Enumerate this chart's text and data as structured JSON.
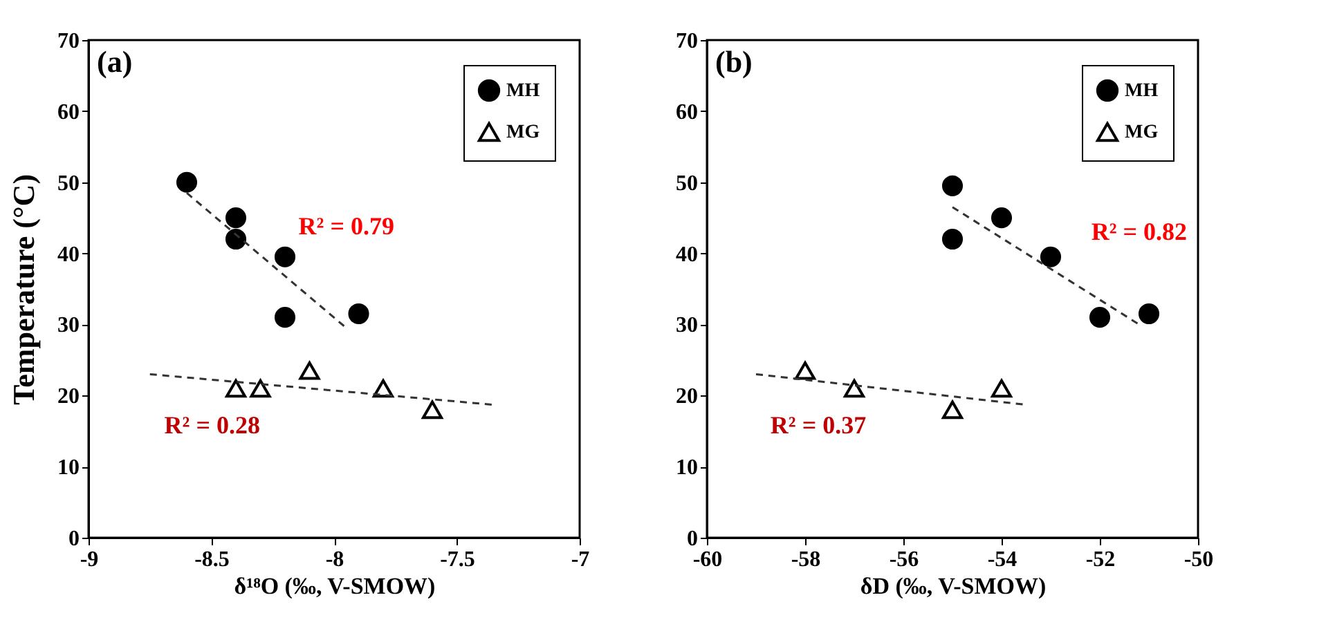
{
  "chart_data": [
    {
      "type": "scatter",
      "title": "(a)",
      "xlabel": "δ¹⁸O (‰, V-SMOW)",
      "ylabel": "Temperature (°C)",
      "xlim": [
        -9,
        -7
      ],
      "xticks": [
        -9,
        -8.5,
        -8,
        -7.5,
        -7
      ],
      "ylim": [
        0,
        70
      ],
      "yticks": [
        0,
        10,
        20,
        30,
        40,
        50,
        60,
        70
      ],
      "grid": false,
      "legend": "top right",
      "series": [
        {
          "name": "MH",
          "color": "#000000",
          "marker": "circle",
          "x": [
            -8.6,
            -8.4,
            -8.4,
            -8.2,
            -8.2,
            -7.9
          ],
          "values": [
            50,
            45,
            42,
            39.5,
            31,
            31.5
          ]
        },
        {
          "name": "MG",
          "color": "#000000",
          "marker": "triangle",
          "x": [
            -8.4,
            -8.3,
            -8.1,
            -7.8,
            -7.6
          ],
          "values": [
            21,
            21,
            23.5,
            21,
            18
          ]
        },
        {
          "type": "line",
          "color": "#333333",
          "line_style": "dashed",
          "x": [
            -8.6,
            -7.95
          ],
          "values": [
            48.5,
            29.5
          ]
        },
        {
          "type": "line",
          "color": "#333333",
          "line_style": "dashed",
          "x": [
            -8.75,
            -7.35
          ],
          "values": [
            23,
            18.7
          ]
        }
      ],
      "annotations": [
        "R² = 0.79",
        "R² = 0.28"
      ]
    },
    {
      "type": "scatter",
      "title": "(b)",
      "xlabel": "δD (‰, V-SMOW)",
      "xlim": [
        -60,
        -50
      ],
      "xticks": [
        -60,
        -58,
        -56,
        -54,
        -52,
        -50
      ],
      "ylim": [
        0,
        70
      ],
      "yticks": [
        0,
        10,
        20,
        30,
        40,
        50,
        60,
        70
      ],
      "grid": false,
      "legend": "top right",
      "series": [
        {
          "name": "MH",
          "color": "#000000",
          "marker": "circle",
          "x": [
            -55,
            -55,
            -54,
            -53,
            -52,
            -51
          ],
          "values": [
            49.5,
            42,
            45,
            39.5,
            31,
            31.5
          ]
        },
        {
          "name": "MG",
          "color": "#000000",
          "marker": "triangle",
          "x": [
            -58,
            -57,
            -55,
            -54
          ],
          "values": [
            23.5,
            21,
            18,
            21
          ]
        },
        {
          "type": "line",
          "color": "#333333",
          "line_style": "dashed",
          "x": [
            -55,
            -51.2
          ],
          "values": [
            46.5,
            30
          ]
        },
        {
          "type": "line",
          "color": "#333333",
          "line_style": "dashed",
          "x": [
            -59,
            -53.5
          ],
          "values": [
            23,
            18.7
          ]
        }
      ],
      "annotations": [
        "R² = 0.82",
        "R² = 0.37"
      ]
    }
  ]
}
